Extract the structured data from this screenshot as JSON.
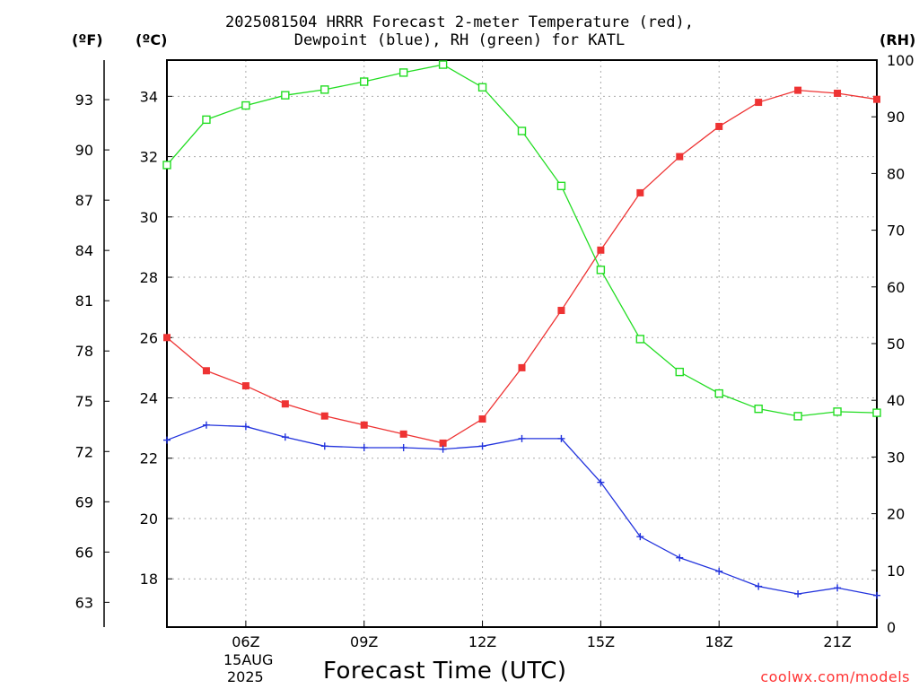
{
  "title": {
    "line1": "2025081504 HRRR Forecast 2-meter Temperature (red),",
    "line2": "Dewpoint (blue), RH (green) for KATL"
  },
  "axis_units": {
    "fahrenheit": "(ºF)",
    "celsius": "(ºC)",
    "rh": "(RH)"
  },
  "xlabel": "Forecast Time (UTC)",
  "watermark": "coolwx.com/models",
  "date_label": {
    "day_month": "15AUG",
    "year": "2025"
  },
  "colors": {
    "temperature": "#ee3333",
    "dewpoint": "#2233dd",
    "rh": "#22dd22",
    "grid": "#aaaaaa"
  },
  "chart_data": {
    "type": "line",
    "title": "2025081504 HRRR Forecast 2-meter Temperature (red), Dewpoint (blue), RH (green) for KATL",
    "xlabel": "Forecast Time (UTC)",
    "x_hours": [
      4,
      5,
      6,
      7,
      8,
      9,
      10,
      11,
      12,
      13,
      14,
      15,
      16,
      17,
      18,
      19,
      20,
      21,
      22
    ],
    "x_ticks": [
      {
        "hour": 6,
        "label": "06Z"
      },
      {
        "hour": 9,
        "label": "09Z"
      },
      {
        "hour": 12,
        "label": "12Z"
      },
      {
        "hour": 15,
        "label": "15Z"
      },
      {
        "hour": 18,
        "label": "18Z"
      },
      {
        "hour": 21,
        "label": "21Z"
      }
    ],
    "xlim": [
      4,
      22
    ],
    "left_axis_celsius": {
      "ylim": [
        16.4,
        35.2
      ],
      "ticks": [
        18,
        20,
        22,
        24,
        26,
        28,
        30,
        32,
        34
      ]
    },
    "left_axis_fahrenheit": {
      "ticks": [
        63,
        66,
        69,
        72,
        75,
        78,
        81,
        84,
        87,
        90,
        93
      ]
    },
    "right_axis_rh": {
      "ylim": [
        0,
        100
      ],
      "ticks": [
        0,
        10,
        20,
        30,
        40,
        50,
        60,
        70,
        80,
        90,
        100
      ]
    },
    "series": [
      {
        "name": "Temperature",
        "axis": "celsius",
        "marker": "filled-square",
        "values": [
          26.0,
          24.9,
          24.4,
          23.8,
          23.4,
          23.1,
          22.8,
          22.5,
          23.3,
          25.0,
          26.9,
          28.9,
          30.8,
          32.0,
          33.0,
          33.8,
          34.2,
          34.1,
          33.9
        ]
      },
      {
        "name": "Dewpoint",
        "axis": "celsius",
        "marker": "plus",
        "values": [
          22.6,
          23.1,
          23.05,
          22.7,
          22.4,
          22.35,
          22.35,
          22.3,
          22.4,
          22.65,
          22.65,
          21.2,
          19.4,
          18.7,
          18.25,
          17.75,
          17.5,
          17.7,
          17.45
        ]
      },
      {
        "name": "RH",
        "axis": "rh",
        "marker": "open-square",
        "values": [
          81.5,
          89.5,
          92,
          93.8,
          94.8,
          96.2,
          97.8,
          99.2,
          95.2,
          87.5,
          77.8,
          63,
          50.8,
          45,
          41.2,
          38.5,
          37.2,
          38,
          37.8
        ]
      }
    ]
  }
}
